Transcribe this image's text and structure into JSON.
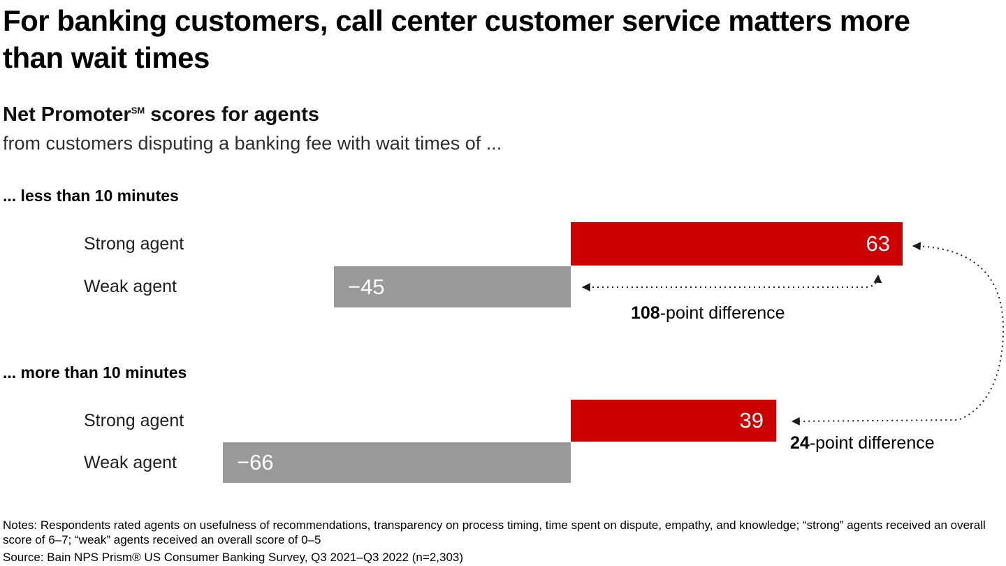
{
  "header": {
    "title": "For banking customers, call center customer service matters more than wait times",
    "subtitle_bold_prefix": "Net Promoter",
    "subtitle_bold_sup": "SM",
    "subtitle_bold_suffix": " scores for agents",
    "subtitle": "from customers disputing a banking fee with wait times of ..."
  },
  "footer": {
    "notes": "Notes: Respondents rated agents on usefulness of recommendations, transparency on process timing, time spent on dispute, empathy, and knowledge; “strong” agents received an overall score of 6–7; “weak” agents received an overall score of 0–5",
    "source": "Source: Bain NPS Prism® US Consumer Banking Survey, Q3 2021–Q3 2022 (n=2,303)"
  },
  "chart_data": {
    "type": "bar",
    "orientation": "horizontal",
    "diverging": true,
    "baseline": 0,
    "xlim": [
      -110,
      85
    ],
    "value_unit": "Net Promoter score (points)",
    "colors": {
      "strong_agent": "#cc0000",
      "weak_agent": "#999999",
      "annotation": "#1a1a1a"
    },
    "groups": [
      {
        "label": "... less than 10 minutes",
        "bars": [
          {
            "label": "Strong agent",
            "value": 63,
            "display": "63"
          },
          {
            "label": "Weak agent",
            "value": -45,
            "display": "−45"
          }
        ]
      },
      {
        "label": "... more than 10 minutes",
        "bars": [
          {
            "label": "Strong agent",
            "value": 39,
            "display": "39"
          },
          {
            "label": "Weak agent",
            "value": -66,
            "display": "−66"
          }
        ]
      }
    ],
    "annotations": [
      {
        "number": "108",
        "suffix": "-point difference",
        "connects": "Weak agent (−45) to Strong agent (63), less than 10 minutes"
      },
      {
        "number": "24",
        "suffix": "-point difference",
        "connects": "Strong agent (63, less than 10 minutes) to Strong agent (39, more than 10 minutes)"
      }
    ]
  }
}
